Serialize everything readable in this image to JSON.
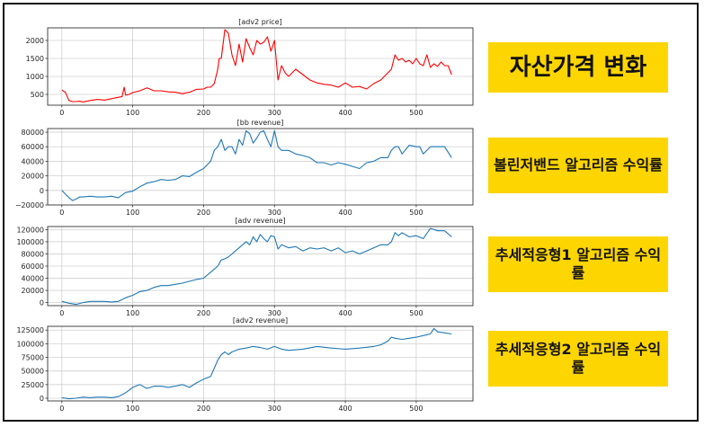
{
  "labels": [
    "자산가격 변화",
    "볼린저밴드 알고리즘 수익률",
    "추세적응형1 알고리즘 수익률",
    "추세적응형2 알고리즘 수익률"
  ],
  "colors": {
    "red_series": "#ff0000",
    "blue_series": "#1f77b4",
    "label_bg": "#fdd500"
  },
  "chart_data": [
    {
      "type": "line",
      "title": "[adv2 price]",
      "xlim": [
        -20,
        580
      ],
      "ylim": [
        200,
        2350
      ],
      "xticks": [
        0,
        100,
        200,
        300,
        400,
        500
      ],
      "yticks": [
        500,
        1000,
        1500,
        2000
      ],
      "ytick_labels": [
        "500",
        "1000",
        "1500",
        "2000"
      ],
      "grid": true,
      "series": [
        {
          "color": "#ff0000",
          "x": [
            0,
            5,
            10,
            15,
            20,
            25,
            30,
            40,
            50,
            60,
            70,
            80,
            85,
            88,
            90,
            95,
            100,
            110,
            120,
            130,
            140,
            150,
            160,
            170,
            180,
            190,
            200,
            205,
            210,
            215,
            220,
            222,
            225,
            230,
            235,
            240,
            245,
            250,
            255,
            260,
            265,
            270,
            275,
            280,
            285,
            290,
            295,
            300,
            305,
            310,
            315,
            320,
            330,
            340,
            350,
            360,
            370,
            380,
            390,
            400,
            410,
            420,
            430,
            440,
            450,
            460,
            465,
            470,
            475,
            480,
            485,
            490,
            495,
            500,
            505,
            510,
            515,
            520,
            525,
            530,
            535,
            540,
            545,
            550
          ],
          "y": [
            620,
            560,
            330,
            300,
            300,
            310,
            290,
            330,
            360,
            340,
            380,
            420,
            440,
            700,
            480,
            500,
            550,
            600,
            680,
            600,
            600,
            570,
            560,
            520,
            560,
            640,
            650,
            700,
            700,
            800,
            1200,
            1500,
            1500,
            2300,
            2200,
            1600,
            1300,
            1900,
            1400,
            2050,
            1800,
            1600,
            2000,
            1900,
            1950,
            2100,
            1700,
            2000,
            900,
            1300,
            1100,
            1000,
            1200,
            1050,
            900,
            820,
            780,
            760,
            700,
            820,
            700,
            720,
            650,
            800,
            900,
            1100,
            1200,
            1600,
            1450,
            1500,
            1400,
            1450,
            1350,
            1500,
            1350,
            1300,
            1600,
            1250,
            1350,
            1280,
            1400,
            1300,
            1300,
            1050
          ]
        }
      ]
    },
    {
      "type": "line",
      "title": "[bb revenue]",
      "xlim": [
        -20,
        580
      ],
      "ylim": [
        -20000,
        85000
      ],
      "xticks": [
        0,
        100,
        200,
        300,
        400,
        500
      ],
      "yticks": [
        -20000,
        0,
        20000,
        40000,
        60000,
        80000
      ],
      "ytick_labels": [
        "−20000",
        "0",
        "20000",
        "40000",
        "60000",
        "80000"
      ],
      "grid": true,
      "series": [
        {
          "color": "#1f77b4",
          "x": [
            0,
            5,
            10,
            15,
            20,
            25,
            30,
            40,
            50,
            60,
            70,
            80,
            90,
            100,
            110,
            120,
            130,
            140,
            150,
            160,
            170,
            180,
            190,
            200,
            210,
            215,
            220,
            225,
            230,
            235,
            240,
            245,
            250,
            255,
            260,
            265,
            270,
            275,
            280,
            285,
            290,
            295,
            300,
            305,
            310,
            320,
            330,
            340,
            350,
            360,
            370,
            380,
            390,
            400,
            410,
            420,
            430,
            440,
            450,
            460,
            465,
            470,
            475,
            480,
            490,
            500,
            505,
            510,
            520,
            530,
            540,
            550
          ],
          "y": [
            0,
            -5000,
            -10000,
            -14000,
            -12000,
            -9000,
            -9000,
            -8000,
            -9000,
            -9000,
            -8000,
            -10000,
            -3000,
            -1000,
            5000,
            10000,
            12000,
            15000,
            14000,
            15000,
            20000,
            19000,
            25000,
            30000,
            40000,
            55000,
            60000,
            70000,
            55000,
            60000,
            60000,
            50000,
            70000,
            62000,
            82000,
            78000,
            65000,
            72000,
            80000,
            82000,
            70000,
            60000,
            82000,
            60000,
            55000,
            55000,
            50000,
            48000,
            45000,
            38000,
            38000,
            35000,
            38000,
            36000,
            33000,
            30000,
            38000,
            40000,
            45000,
            45000,
            55000,
            60000,
            60000,
            50000,
            62000,
            60000,
            60000,
            50000,
            60000,
            60000,
            60000,
            45000
          ]
        }
      ]
    },
    {
      "type": "line",
      "title": "[adv revenue]",
      "xlim": [
        -20,
        580
      ],
      "ylim": [
        -5000,
        125000
      ],
      "xticks": [
        0,
        100,
        200,
        300,
        400,
        500
      ],
      "yticks": [
        0,
        20000,
        40000,
        60000,
        80000,
        100000,
        120000
      ],
      "ytick_labels": [
        "0",
        "20000",
        "40000",
        "60000",
        "80000",
        "100000",
        "120000"
      ],
      "grid": true,
      "series": [
        {
          "color": "#1f77b4",
          "x": [
            0,
            10,
            20,
            30,
            40,
            50,
            60,
            70,
            80,
            90,
            100,
            110,
            120,
            130,
            140,
            150,
            160,
            170,
            180,
            190,
            200,
            210,
            215,
            220,
            225,
            230,
            235,
            240,
            245,
            250,
            255,
            260,
            265,
            270,
            275,
            280,
            285,
            290,
            295,
            300,
            305,
            310,
            320,
            330,
            340,
            350,
            360,
            370,
            380,
            390,
            400,
            410,
            420,
            430,
            440,
            450,
            460,
            465,
            470,
            475,
            480,
            490,
            500,
            510,
            520,
            530,
            540,
            550
          ],
          "y": [
            2000,
            -1000,
            -3000,
            0,
            2000,
            2000,
            2000,
            1000,
            2000,
            8000,
            12000,
            18000,
            20000,
            25000,
            28000,
            28000,
            30000,
            32000,
            35000,
            38000,
            40000,
            50000,
            55000,
            60000,
            70000,
            72000,
            75000,
            80000,
            85000,
            90000,
            95000,
            100000,
            95000,
            108000,
            100000,
            112000,
            105000,
            100000,
            110000,
            108000,
            88000,
            95000,
            90000,
            92000,
            85000,
            90000,
            88000,
            90000,
            85000,
            90000,
            82000,
            85000,
            80000,
            85000,
            90000,
            95000,
            95000,
            100000,
            115000,
            110000,
            115000,
            108000,
            110000,
            105000,
            122000,
            118000,
            118000,
            108000
          ]
        }
      ]
    },
    {
      "type": "line",
      "title": "[adv2 revenue]",
      "xlim": [
        -20,
        580
      ],
      "ylim": [
        -5000,
        132000
      ],
      "xticks": [
        0,
        100,
        200,
        300,
        400,
        500
      ],
      "yticks": [
        0,
        25000,
        50000,
        75000,
        100000,
        125000
      ],
      "ytick_labels": [
        "0",
        "25000",
        "50000",
        "75000",
        "100000",
        "125000"
      ],
      "grid": true,
      "series": [
        {
          "color": "#1f77b4",
          "x": [
            0,
            10,
            20,
            30,
            40,
            50,
            60,
            70,
            80,
            90,
            100,
            110,
            120,
            130,
            140,
            150,
            160,
            170,
            180,
            190,
            200,
            210,
            215,
            220,
            225,
            230,
            235,
            240,
            250,
            260,
            270,
            280,
            290,
            300,
            310,
            320,
            340,
            360,
            380,
            400,
            420,
            440,
            450,
            460,
            465,
            470,
            480,
            490,
            500,
            510,
            520,
            525,
            530,
            540,
            550
          ],
          "y": [
            1000,
            -1000,
            0,
            2000,
            1000,
            2000,
            2000,
            1000,
            3000,
            10000,
            20000,
            25000,
            18000,
            22000,
            22000,
            20000,
            22000,
            25000,
            20000,
            28000,
            35000,
            40000,
            55000,
            70000,
            80000,
            85000,
            80000,
            85000,
            90000,
            92000,
            95000,
            93000,
            90000,
            95000,
            90000,
            88000,
            90000,
            95000,
            92000,
            90000,
            92000,
            95000,
            98000,
            105000,
            112000,
            110000,
            108000,
            110000,
            112000,
            115000,
            118000,
            128000,
            122000,
            120000,
            118000
          ]
        }
      ]
    }
  ]
}
